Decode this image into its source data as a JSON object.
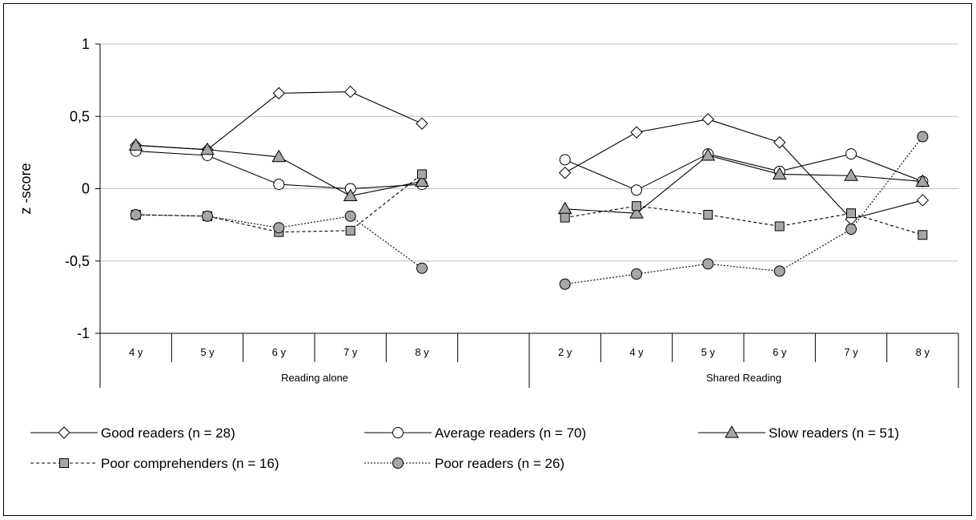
{
  "chart_data": {
    "type": "line",
    "ylabel": "z -score",
    "ylim": [
      -1,
      1
    ],
    "yticks": [
      1,
      0.5,
      0,
      -0.5,
      -1
    ],
    "ytick_labels": [
      "1",
      "0,5",
      "0",
      "-0,5",
      "-1"
    ],
    "grid": true,
    "legend_position": "bottom",
    "groups": [
      {
        "label": "Reading alone",
        "categories": [
          "4 y",
          "5 y",
          "6 y",
          "7 y",
          "8 y",
          ""
        ]
      },
      {
        "label": "Shared Reading",
        "categories": [
          "2 y",
          "4 y",
          "5 y",
          "6 y",
          "7 y",
          "8 y"
        ]
      }
    ],
    "series": [
      {
        "name": "Good readers (n = 28)",
        "style": "solid",
        "marker": "diamond",
        "fill": "#ffffff",
        "values": [
          0.3,
          0.27,
          0.66,
          0.67,
          0.45,
          null,
          0.11,
          0.39,
          0.48,
          0.32,
          -0.21,
          -0.08
        ]
      },
      {
        "name": "Average readers (n = 70)",
        "style": "solid",
        "marker": "circle",
        "fill": "#ffffff",
        "values": [
          0.26,
          0.23,
          0.03,
          0.0,
          0.03,
          null,
          0.2,
          -0.01,
          0.24,
          0.12,
          0.24,
          0.05
        ]
      },
      {
        "name": "Slow readers (n = 51)",
        "style": "solid",
        "marker": "triangle",
        "fill": "#a6a6a6",
        "values": [
          0.3,
          0.27,
          0.22,
          -0.05,
          0.05,
          null,
          -0.14,
          -0.17,
          0.23,
          0.1,
          0.09,
          0.05
        ]
      },
      {
        "name": "Poor comprehenders (n = 16)",
        "style": "dashed",
        "marker": "square",
        "fill": "#a6a6a6",
        "values": [
          -0.18,
          -0.19,
          -0.3,
          -0.29,
          0.1,
          null,
          -0.2,
          -0.12,
          -0.18,
          -0.26,
          -0.17,
          -0.32
        ]
      },
      {
        "name": "Poor readers (n = 26)",
        "style": "dotted",
        "marker": "circle",
        "fill": "#a6a6a6",
        "values": [
          -0.18,
          -0.19,
          -0.27,
          -0.19,
          -0.55,
          null,
          -0.66,
          -0.59,
          -0.52,
          -0.57,
          -0.28,
          0.36
        ]
      }
    ]
  }
}
